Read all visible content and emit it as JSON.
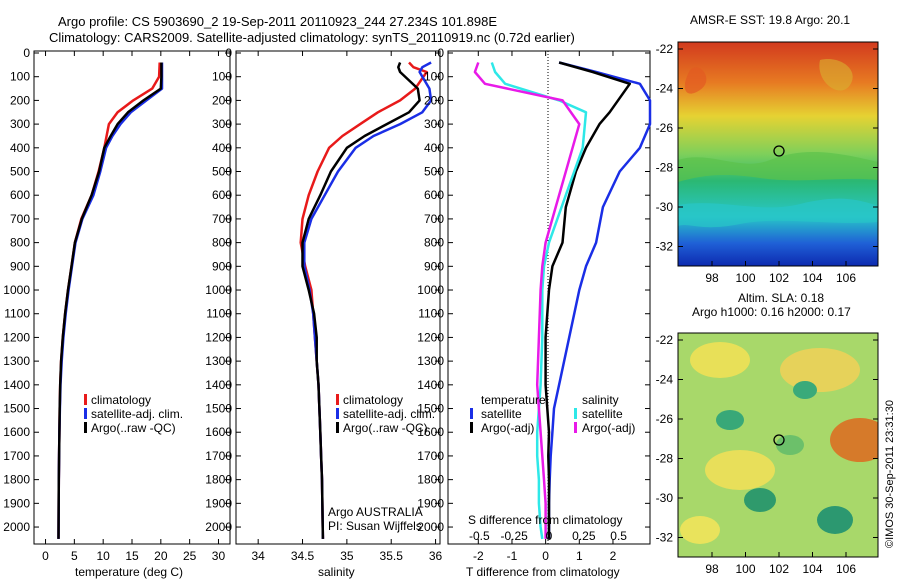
{
  "header": {
    "line1": "Argo profile: CS 5903690_2 19-Sep-2011 20110923_244 27.234S 101.898E",
    "line2": "Climatology: CARS2009. Satellite-adjusted climatology: synTS_20110919.nc (0.72d earlier)"
  },
  "depth_ticks": [
    "0",
    "100",
    "200",
    "300",
    "400",
    "500",
    "600",
    "700",
    "800",
    "900",
    "1000",
    "1100",
    "1200",
    "1300",
    "1400",
    "1500",
    "1600",
    "1700",
    "1800",
    "1900",
    "2000"
  ],
  "colors": {
    "climatology": "#e81a1a",
    "satellite": "#1a2ee6",
    "argo": "#000000",
    "sat_salinity": "#2ee8e8",
    "argo_salinity": "#e81ae8"
  },
  "panels": {
    "temperature": {
      "xlabel": "temperature (deg C)",
      "xticks": [
        "0",
        "5",
        "10",
        "15",
        "20",
        "25",
        "30"
      ],
      "legend": [
        "climatology",
        "satellite-adj. clim.",
        "Argo(..raw -QC)"
      ]
    },
    "salinity": {
      "xlabel": "salinity",
      "xticks": [
        "34",
        "34.5",
        "35",
        "35.5",
        "36"
      ],
      "legend": [
        "climatology",
        "satellite-adj. clim.",
        "Argo(..raw -QC)"
      ],
      "note1": "Argo AUSTRALIA",
      "note2": "PI: Susan Wijffels"
    },
    "difference": {
      "xlabel": "T difference from climatology",
      "s_label": "S difference from climatology",
      "s_ticks": [
        "-0.5",
        "-0.25",
        "0",
        "0.25",
        "0.5"
      ],
      "t_ticks": [
        "-2",
        "-1",
        "0",
        "1",
        "2"
      ],
      "legend_temp_title": "temperature",
      "legend_sal_title": "salinity",
      "legend_temp": [
        "satellite",
        "Argo(-adj)"
      ],
      "legend_sal": [
        "satellite",
        "Argo(-adj)"
      ]
    }
  },
  "maps": {
    "sst_title": "AMSR-E SST: 19.8 Argo: 20.1",
    "sla_title1": "Altim. SLA: 0.18",
    "sla_title2": "Argo h1000: 0.16 h2000: 0.17",
    "lon_ticks": [
      "98",
      "100",
      "102",
      "104",
      "106"
    ],
    "lat_ticks_top": [
      "-22",
      "-24",
      "-26",
      "-28",
      "-30",
      "-32"
    ],
    "lat_ticks_bottom": [
      "-22",
      "-24",
      "-26",
      "-28",
      "-30",
      "-32"
    ]
  },
  "credit": "©IMOS 30-Sep-2011 23:31:30",
  "chart_data": [
    {
      "type": "line",
      "xlabel": "temperature (deg C)",
      "ylabel": "",
      "xlim": [
        -2,
        32
      ],
      "ylim": [
        2080,
        0
      ],
      "series": [
        {
          "name": "climatology",
          "x": [
            19.8,
            19.7,
            18.5,
            15.2,
            12.5,
            11.0,
            10.2,
            9.2,
            8.0,
            6.2,
            5.1,
            4.5,
            3.9,
            3.4,
            3.0,
            2.7,
            2.55,
            2.45,
            2.4,
            2.35,
            2.3,
            2.25
          ],
          "y": [
            40,
            100,
            150,
            200,
            250,
            300,
            400,
            500,
            600,
            700,
            800,
            900,
            1000,
            1100,
            1200,
            1300,
            1400,
            1500,
            1600,
            1700,
            1800,
            2050
          ]
        },
        {
          "name": "satellite-adj. clim.",
          "x": [
            20.2,
            20.2,
            20.2,
            17.5,
            14.8,
            13.0,
            11.6,
            10.5,
            9.5,
            8.3,
            6.4,
            5.2,
            4.6,
            4.0,
            3.5,
            3.1,
            2.8,
            2.6,
            2.5,
            2.4,
            2.35,
            2.3,
            2.25
          ],
          "y": [
            40,
            100,
            150,
            200,
            250,
            300,
            350,
            400,
            500,
            600,
            700,
            800,
            900,
            1000,
            1100,
            1200,
            1300,
            1400,
            1500,
            1600,
            1700,
            1800,
            2050
          ]
        },
        {
          "name": "Argo(..raw -QC)",
          "x": [
            20.1,
            20.1,
            20.0,
            17.0,
            14.3,
            12.5,
            11.3,
            10.2,
            9.3,
            8.0,
            6.3,
            5.1,
            4.5,
            3.9,
            3.4,
            3.0,
            2.7,
            2.55,
            2.45,
            2.4,
            2.35,
            2.3,
            2.25
          ],
          "y": [
            40,
            100,
            150,
            200,
            250,
            300,
            350,
            400,
            500,
            600,
            700,
            800,
            900,
            1000,
            1100,
            1200,
            1300,
            1400,
            1500,
            1600,
            1700,
            1800,
            2050
          ]
        }
      ]
    },
    {
      "type": "line",
      "xlabel": "salinity",
      "ylabel": "",
      "xlim": [
        33.75,
        36.05
      ],
      "ylim": [
        2080,
        0
      ],
      "series": [
        {
          "name": "climatology",
          "x": [
            35.7,
            35.75,
            35.9,
            35.77,
            35.6,
            35.35,
            35.15,
            34.95,
            34.8,
            34.67,
            34.57,
            34.5,
            34.48,
            34.53,
            34.6,
            34.62,
            34.64,
            34.66,
            34.68,
            34.69,
            34.7,
            34.71,
            34.72,
            34.73
          ],
          "y": [
            40,
            60,
            80,
            150,
            200,
            250,
            300,
            350,
            400,
            500,
            600,
            700,
            800,
            900,
            1000,
            1100,
            1200,
            1300,
            1400,
            1500,
            1600,
            1700,
            1800,
            2050
          ]
        },
        {
          "name": "satellite-adj. clim.",
          "x": [
            35.95,
            35.85,
            35.82,
            35.93,
            35.95,
            35.85,
            35.6,
            35.3,
            35.1,
            34.9,
            34.75,
            34.6,
            34.52,
            34.52,
            34.58,
            34.62,
            34.64,
            34.66,
            34.68,
            34.69,
            34.7,
            34.71,
            34.72,
            34.73
          ],
          "y": [
            40,
            60,
            80,
            150,
            200,
            250,
            300,
            350,
            400,
            500,
            600,
            700,
            800,
            900,
            1000,
            1100,
            1200,
            1300,
            1400,
            1500,
            1600,
            1700,
            1800,
            2050
          ]
        },
        {
          "name": "Argo(..raw -QC)",
          "x": [
            35.6,
            35.58,
            35.6,
            35.8,
            35.82,
            35.7,
            35.45,
            35.2,
            35.0,
            34.82,
            34.7,
            34.57,
            34.5,
            34.5,
            34.57,
            34.63,
            34.66,
            34.66,
            34.68,
            34.69,
            34.7,
            34.71,
            34.72,
            34.73
          ],
          "y": [
            40,
            60,
            80,
            150,
            200,
            250,
            300,
            350,
            400,
            500,
            600,
            700,
            800,
            900,
            1000,
            1100,
            1200,
            1300,
            1400,
            1500,
            1600,
            1700,
            1800,
            2050
          ]
        }
      ]
    },
    {
      "type": "line",
      "xlabel": "T difference from climatology",
      "ylabel": "",
      "xlim": [
        -2.9,
        3.1
      ],
      "ylim": [
        2080,
        0
      ],
      "series": [
        {
          "name": "temperature satellite",
          "x": [
            0.4,
            1.5,
            2.8,
            3.1,
            3.1,
            2.8,
            2.2,
            1.7,
            1.5,
            1.2,
            1.0,
            0.7,
            0.4,
            0.25,
            0.2,
            0.15,
            0.12,
            0.1,
            0.1,
            0.1
          ],
          "y": [
            40,
            80,
            130,
            200,
            300,
            400,
            500,
            650,
            800,
            900,
            1000,
            1200,
            1400,
            1500,
            1600,
            1700,
            1800,
            1900,
            2000,
            2050
          ]
        },
        {
          "name": "temperature Argo(-adj)",
          "x": [
            0.4,
            1.4,
            2.5,
            1.9,
            1.6,
            1.2,
            0.9,
            0.6,
            0.5,
            0.2,
            0.1,
            0.0,
            0.0,
            0.05,
            0.1,
            0.08,
            0.1,
            0.1,
            0.1,
            0.1
          ],
          "y": [
            40,
            80,
            130,
            250,
            300,
            400,
            500,
            650,
            800,
            900,
            1000,
            1200,
            1400,
            1500,
            1600,
            1700,
            1800,
            1900,
            2000,
            2050
          ]
        },
        {
          "name": "salinity satellite",
          "x": [
            -1.6,
            -1.5,
            -1.2,
            0.4,
            1.2,
            1.1,
            0.6,
            0.1,
            -0.05,
            -0.1,
            -0.1,
            -0.15,
            -0.2,
            -0.25,
            -0.25,
            -0.2,
            -0.2,
            -0.15,
            -0.1
          ],
          "y": [
            40,
            80,
            130,
            200,
            250,
            400,
            600,
            800,
            900,
            1000,
            1200,
            1400,
            1500,
            1600,
            1700,
            1800,
            1900,
            2000,
            2050
          ]
        },
        {
          "name": "salinity Argo(-adj)",
          "x": [
            -2.0,
            -2.1,
            -1.8,
            0.5,
            1.0,
            0.7,
            0.3,
            0.0,
            -0.1,
            -0.15,
            -0.2,
            -0.25,
            -0.2,
            -0.15,
            -0.1,
            -0.05,
            0.0,
            0.0
          ],
          "y": [
            40,
            80,
            130,
            200,
            300,
            450,
            650,
            800,
            900,
            1000,
            1200,
            1400,
            1500,
            1600,
            1700,
            1800,
            1900,
            2050
          ]
        }
      ]
    }
  ]
}
